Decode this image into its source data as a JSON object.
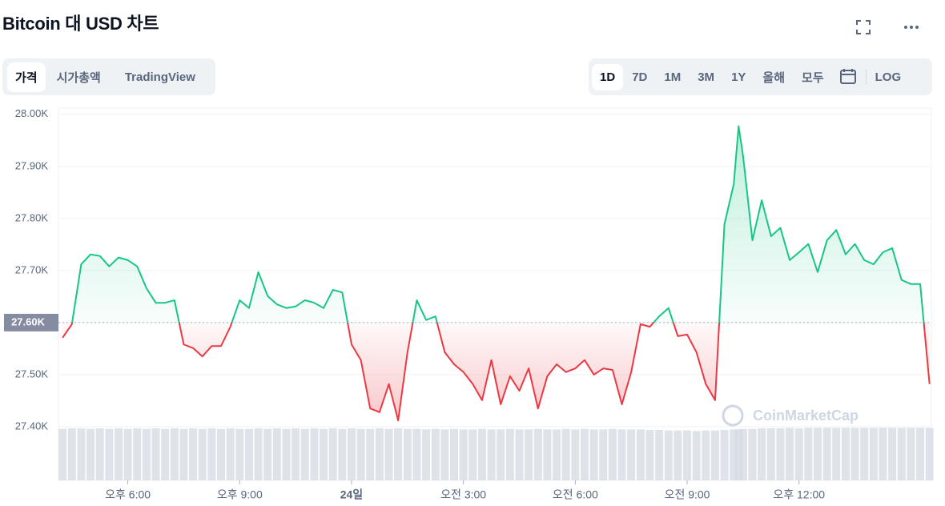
{
  "header": {
    "title": "Bitcoin 대 USD 차트"
  },
  "tabs": [
    "가격",
    "시가총액",
    "TradingView"
  ],
  "ranges": [
    "1D",
    "7D",
    "1M",
    "3M",
    "1Y",
    "올해",
    "모두"
  ],
  "log": "LOG",
  "watermark": "CoinMarketCap",
  "chart_data": {
    "type": "line",
    "up_color": "#16c784",
    "down_color": "#ea3943",
    "grid": true,
    "baseline": {
      "value": 27600,
      "label": "27.60K"
    },
    "xlim": [
      -7.86,
      15.55
    ],
    "xticks": [
      {
        "value": -6,
        "label": "오후 6:00"
      },
      {
        "value": -3,
        "label": "오후 9:00"
      },
      {
        "value": 0,
        "label": "24일"
      },
      {
        "value": 3,
        "label": "오전 3:00"
      },
      {
        "value": 6,
        "label": "오전 6:00"
      },
      {
        "value": 9,
        "label": "오전 9:00"
      },
      {
        "value": 12,
        "label": "오후 12:00"
      }
    ],
    "ylim": [
      27400,
      28012
    ],
    "yticks": [
      {
        "value": 27400,
        "label": "27.40K"
      },
      {
        "value": 27500,
        "label": "27.50K"
      },
      {
        "value": 27600,
        "label": "27.60K"
      },
      {
        "value": 27700,
        "label": "27.70K"
      },
      {
        "value": 27800,
        "label": "27.80K"
      },
      {
        "value": 27900,
        "label": "27.90K"
      },
      {
        "value": 28000,
        "label": "28.00K"
      }
    ],
    "x": [
      -7.75,
      -7.5,
      -7.25,
      -7,
      -6.75,
      -6.5,
      -6.25,
      -6,
      -5.75,
      -5.5,
      -5.25,
      -5,
      -4.75,
      -4.5,
      -4.25,
      -4,
      -3.75,
      -3.5,
      -3.25,
      -3,
      -2.75,
      -2.5,
      -2.25,
      -2,
      -1.75,
      -1.5,
      -1.25,
      -1,
      -0.75,
      -0.5,
      -0.25,
      0,
      0.25,
      0.5,
      0.75,
      1,
      1.25,
      1.5,
      1.75,
      2,
      2.25,
      2.5,
      2.75,
      3,
      3.25,
      3.5,
      3.75,
      4,
      4.25,
      4.5,
      4.75,
      5,
      5.25,
      5.5,
      5.75,
      6,
      6.25,
      6.5,
      6.75,
      7,
      7.25,
      7.5,
      7.75,
      8,
      8.25,
      8.5,
      8.75,
      9,
      9.25,
      9.5,
      9.75,
      10,
      10.25,
      10.38,
      10.5,
      10.75,
      11,
      11.25,
      11.5,
      11.75,
      12,
      12.25,
      12.5,
      12.75,
      13,
      13.25,
      13.5,
      13.75,
      14,
      14.25,
      14.5,
      14.75,
      15,
      15.25,
      15.5
    ],
    "values": [
      27571,
      27597,
      27712,
      27731,
      27728,
      27708,
      27725,
      27720,
      27708,
      27666,
      27638,
      27638,
      27643,
      27558,
      27551,
      27535,
      27555,
      27555,
      27592,
      27643,
      27628,
      27697,
      27651,
      27635,
      27628,
      27631,
      27643,
      27638,
      27628,
      27663,
      27658,
      27558,
      27528,
      27435,
      27428,
      27482,
      27412,
      27543,
      27643,
      27605,
      27612,
      27543,
      27520,
      27505,
      27482,
      27451,
      27528,
      27443,
      27497,
      27469,
      27512,
      27435,
      27497,
      27520,
      27505,
      27512,
      27528,
      27500,
      27512,
      27509,
      27443,
      27505,
      27597,
      27592,
      27612,
      27628,
      27574,
      27577,
      27543,
      27482,
      27451,
      27789,
      27866,
      27977,
      27920,
      27758,
      27835,
      27766,
      27782,
      27720,
      27735,
      27751,
      27697,
      27758,
      27778,
      27731,
      27751,
      27720,
      27712,
      27735,
      27743,
      27682,
      27674,
      27674,
      27482
    ],
    "vlim": [
      0,
      100
    ],
    "volume": [
      96,
      97,
      97,
      96,
      97,
      96,
      97,
      96,
      97,
      96,
      97,
      96,
      97,
      96,
      97,
      96,
      97,
      96,
      97,
      96,
      96,
      97,
      96,
      97,
      96,
      97,
      96,
      97,
      96,
      97,
      96,
      97,
      96,
      96,
      97,
      96,
      97,
      96,
      96,
      95,
      96,
      95,
      96,
      95,
      95,
      96,
      95,
      95,
      96,
      95,
      95,
      96,
      95,
      95,
      96,
      95,
      96,
      95,
      95,
      96,
      95,
      95,
      95,
      94,
      94,
      93,
      93,
      93,
      92,
      93,
      93,
      94,
      95,
      95,
      96,
      96,
      97,
      97,
      97,
      98,
      97,
      98,
      98,
      98,
      98,
      98,
      98,
      98,
      98,
      98,
      98,
      98,
      98,
      98,
      98
    ]
  }
}
